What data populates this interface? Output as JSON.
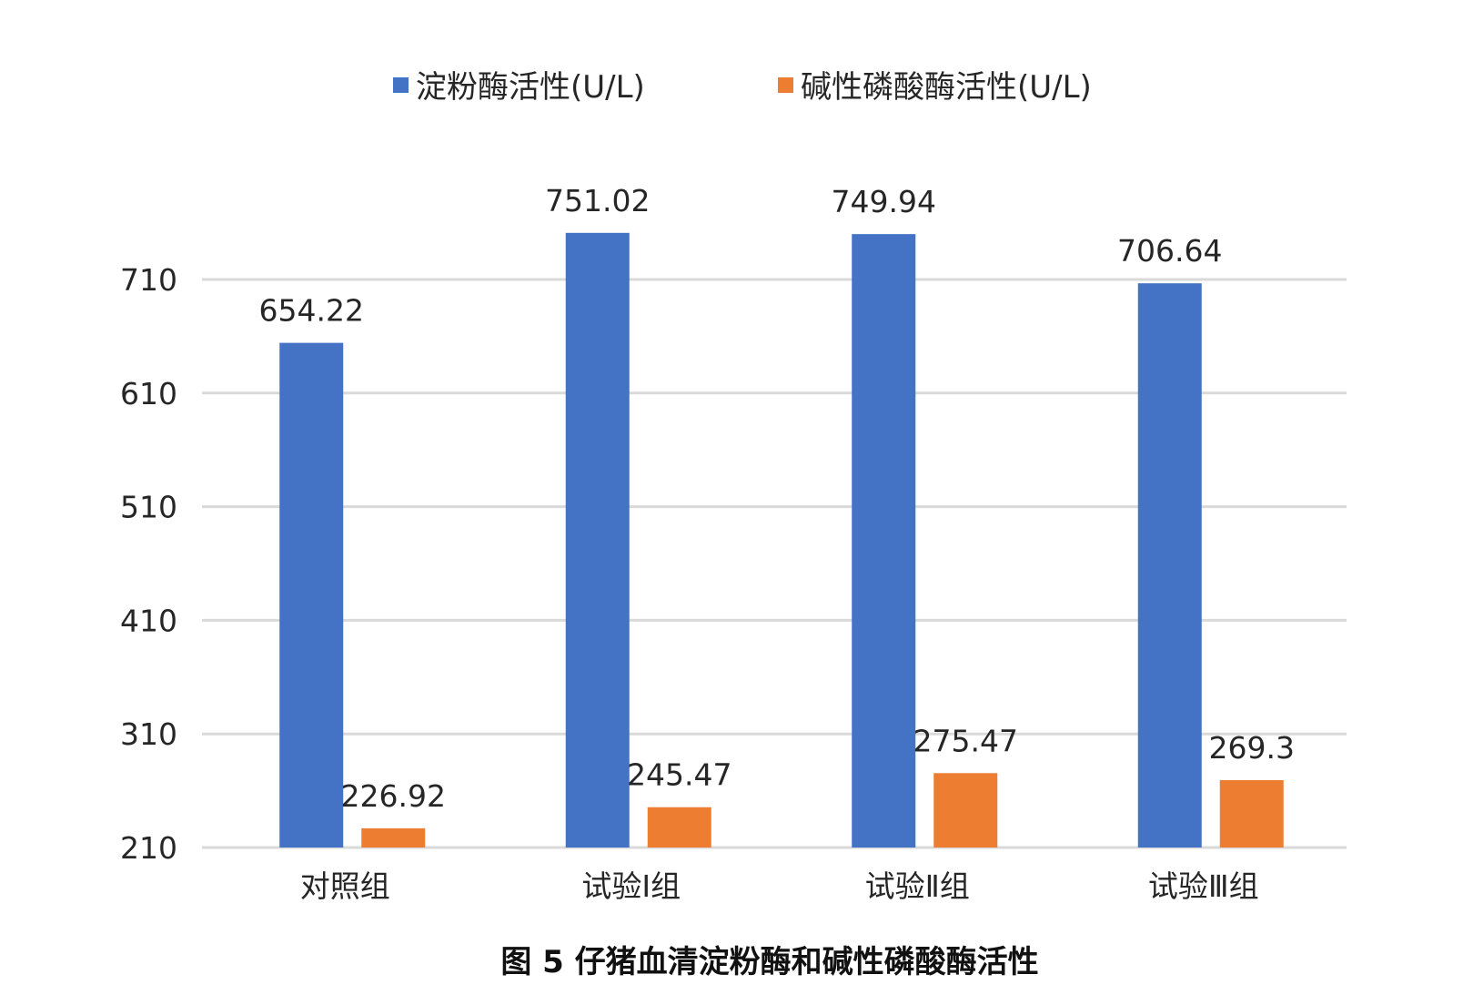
{
  "chart_data": {
    "type": "bar",
    "title": "",
    "caption": "图 5  仔猪血清淀粉酶和碱性磷酸酶活性",
    "xlabel": "",
    "ylabel": "",
    "categories": [
      "对照组",
      "试验Ⅰ组",
      "试验Ⅱ组",
      "试验Ⅲ组"
    ],
    "series": [
      {
        "name": "淀粉酶活性(U/L)",
        "color": "#4472C4",
        "values": [
          654.22,
          751.02,
          749.94,
          706.64
        ],
        "labels": [
          "654.22",
          "751.02",
          "749.94",
          "706.64"
        ]
      },
      {
        "name": "碱性磷酸酶活性(U/L)",
        "color": "#ED7D31",
        "values": [
          226.92,
          245.47,
          275.47,
          269.3
        ],
        "labels": [
          "226.92",
          "245.47",
          "275.47",
          "269.3"
        ]
      }
    ],
    "ylim": [
      210,
      710
    ],
    "yticks": [
      210,
      310,
      410,
      510,
      610,
      710
    ],
    "ytick_labels": [
      "210",
      "310",
      "410",
      "510",
      "610",
      "710"
    ],
    "grid": true,
    "gridline_color": "#D9D9D9",
    "legend_position": "top"
  }
}
